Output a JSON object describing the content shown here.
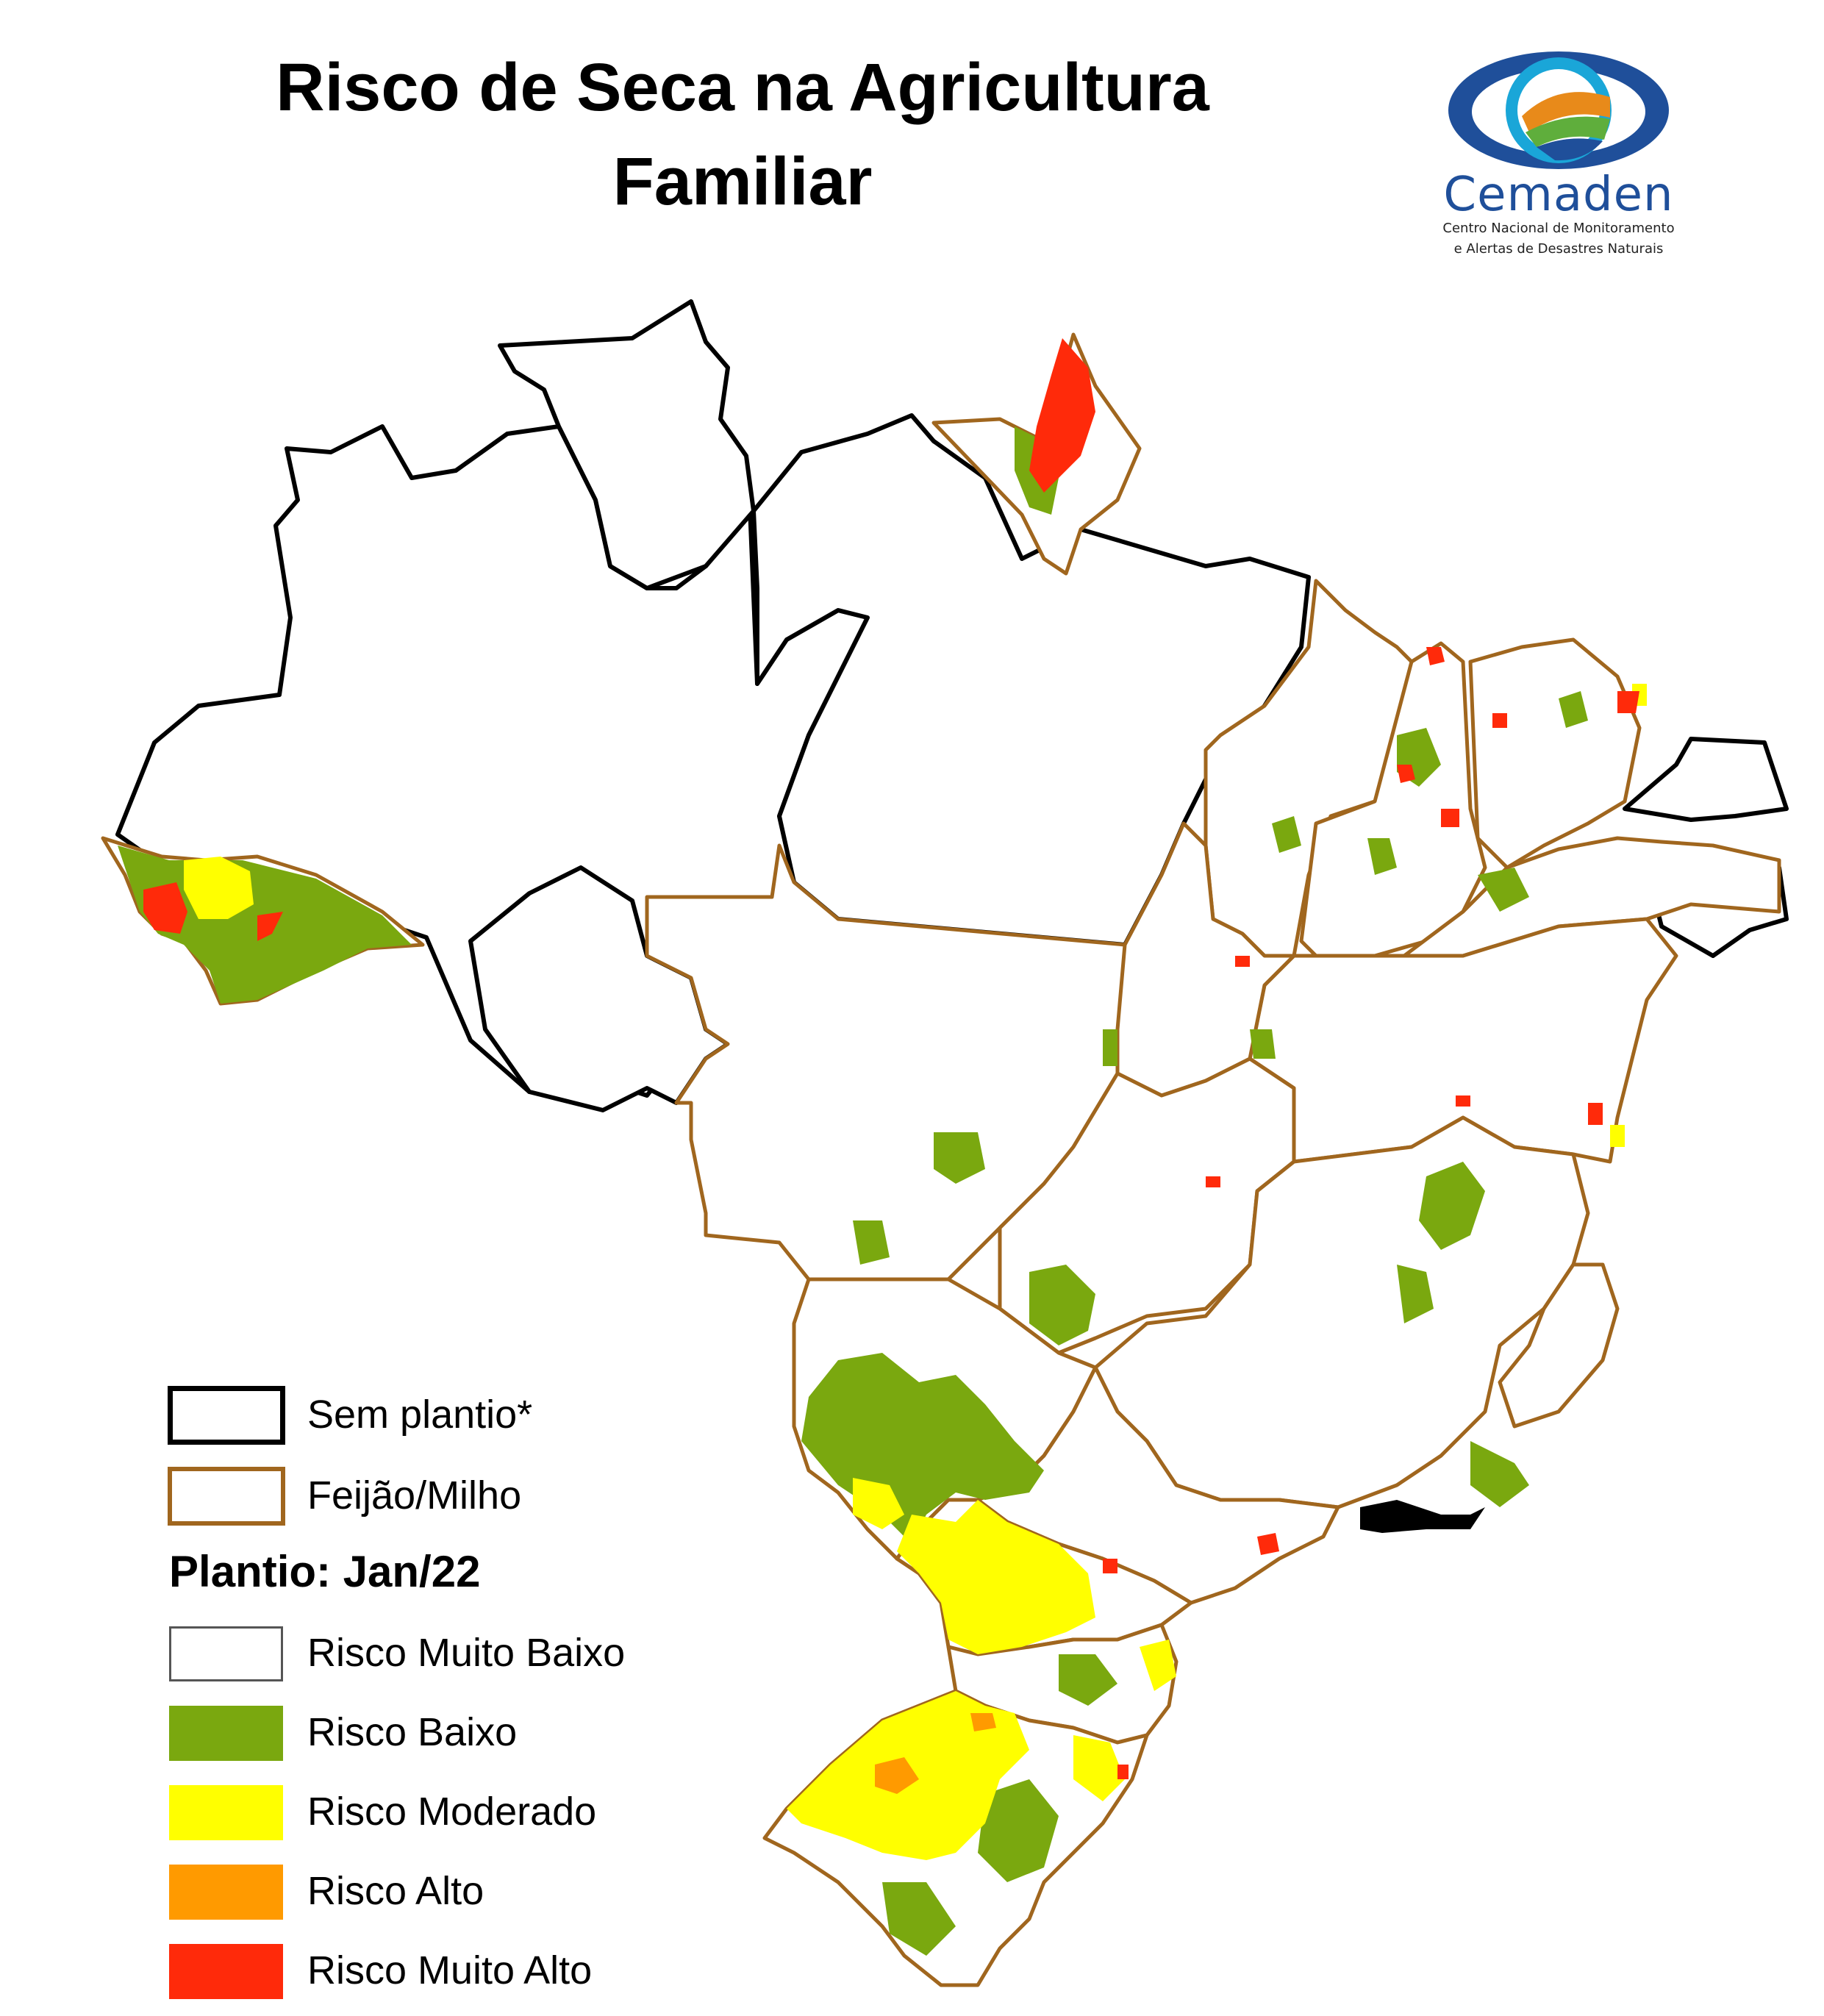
{
  "title": {
    "line1": "Risco de Seca na Agricultura",
    "line2": "Familiar"
  },
  "logo": {
    "icon": "cemaden-eye-logo",
    "name": "Cemaden",
    "subtitle_line1": "Centro Nacional de Monitoramento",
    "subtitle_line2": "e Alertas de Desastres Naturais",
    "colors": {
      "blue": "#1f4f9a",
      "green": "#5fae3c",
      "orange": "#e88a1a",
      "cyan": "#1aa6d8"
    }
  },
  "legend": {
    "boundaries": [
      {
        "label": "Sem plantio*",
        "stroke": "#000000"
      },
      {
        "label": "Feijão/Milho",
        "stroke": "#a0661e"
      }
    ],
    "heading": "Plantio: Jan/22",
    "classes": [
      {
        "label": "Risco Muito Baixo",
        "color": "#ffffff"
      },
      {
        "label": "Risco Baixo",
        "color": "#7aa80f"
      },
      {
        "label": "Risco Moderado",
        "color": "#ffff00"
      },
      {
        "label": "Risco Alto",
        "color": "#ff9a00"
      },
      {
        "label": "Risco Muito Alto",
        "color": "#ff2a0a"
      }
    ]
  }
}
